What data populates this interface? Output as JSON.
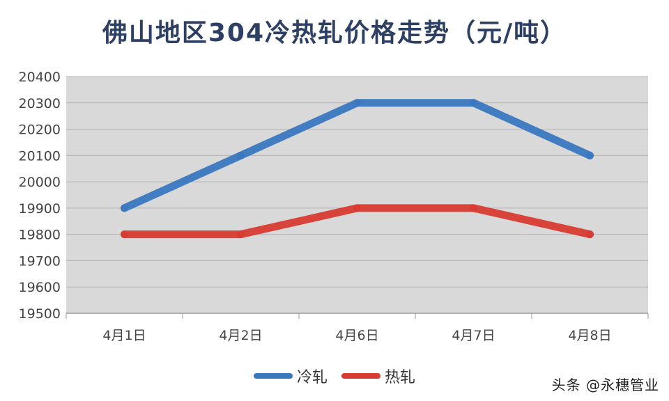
{
  "watermark": "头条 @永穗管业",
  "chart_data": {
    "type": "line",
    "title": "佛山地区304冷热轧价格走势（元/吨）",
    "categories": [
      "4月1日",
      "4月2日",
      "4月6日",
      "4月7日",
      "4月8日"
    ],
    "series": [
      {
        "name": "冷轧",
        "color": "#3a78c0",
        "values": [
          19900,
          20100,
          20300,
          20300,
          20100
        ]
      },
      {
        "name": "热轧",
        "color": "#d83b31",
        "values": [
          19800,
          19800,
          19900,
          19900,
          19800
        ]
      }
    ],
    "ylim": [
      19500,
      20400
    ],
    "yticks": [
      19500,
      19600,
      19700,
      19800,
      19900,
      20000,
      20100,
      20200,
      20300,
      20400
    ],
    "grid": true,
    "plot_background": "#d9d9d9",
    "legend_position": "bottom"
  }
}
